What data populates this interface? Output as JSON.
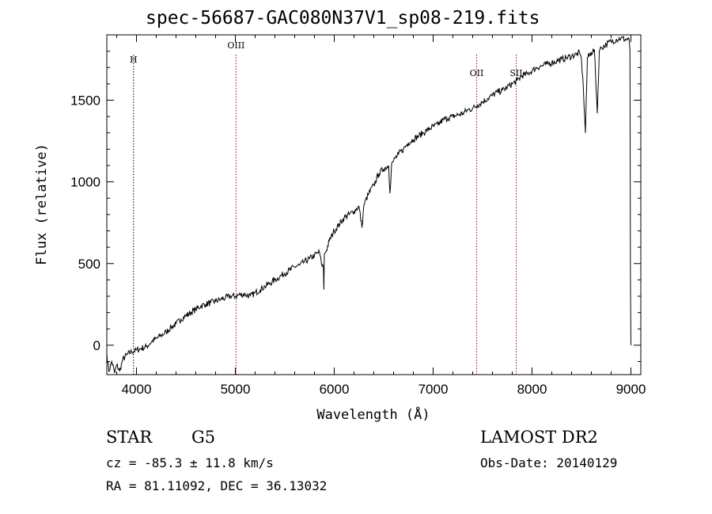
{
  "chart_data": {
    "type": "line",
    "title": "spec-56687-GAC080N37V1_sp08-219.fits",
    "xlabel": "Wavelength (Å)",
    "ylabel": "Flux (relative)",
    "xlim": [
      3700,
      9100
    ],
    "ylim": [
      -180,
      1900
    ],
    "xticks": [
      4000,
      5000,
      6000,
      7000,
      8000,
      9000
    ],
    "xtick_labels": [
      "4000",
      "5000",
      "6000",
      "7000",
      "8000",
      "9000"
    ],
    "yticks": [
      0,
      500,
      1000,
      1500
    ],
    "ytick_labels": [
      "0",
      "500",
      "1000",
      "1500"
    ],
    "grid": false,
    "series": [
      {
        "color": "#000000",
        "x": [
          3700,
          3720,
          3750,
          3780,
          3800,
          3830,
          3860,
          3900,
          3950,
          4000,
          4050,
          4100,
          4150,
          4200,
          4250,
          4300,
          4350,
          4400,
          4450,
          4500,
          4550,
          4600,
          4650,
          4700,
          4750,
          4800,
          4850,
          4900,
          4950,
          5000,
          5050,
          5100,
          5150,
          5200,
          5250,
          5300,
          5350,
          5400,
          5450,
          5500,
          5550,
          5600,
          5650,
          5700,
          5750,
          5800,
          5850,
          5870,
          5890,
          5895,
          5900,
          5920,
          5950,
          6000,
          6050,
          6100,
          6150,
          6200,
          6250,
          6280,
          6300,
          6350,
          6400,
          6450,
          6500,
          6550,
          6563,
          6580,
          6600,
          6650,
          6700,
          6750,
          6800,
          6850,
          6900,
          6950,
          7000,
          7050,
          7100,
          7150,
          7200,
          7250,
          7300,
          7350,
          7400,
          7450,
          7500,
          7550,
          7600,
          7650,
          7700,
          7750,
          7800,
          7850,
          7900,
          7950,
          8000,
          8050,
          8100,
          8150,
          8200,
          8250,
          8300,
          8350,
          8400,
          8450,
          8480,
          8500,
          8520,
          8540,
          8560,
          8600,
          8630,
          8660,
          8680,
          8700,
          8750,
          8800,
          8850,
          8900,
          8950,
          8980,
          8990,
          8995,
          9000
        ],
        "y": [
          -50,
          -160,
          -100,
          -170,
          -120,
          -160,
          -90,
          -60,
          -40,
          -30,
          -20,
          -10,
          20,
          40,
          60,
          80,
          110,
          130,
          160,
          180,
          200,
          220,
          240,
          250,
          260,
          270,
          280,
          290,
          300,
          300,
          310,
          310,
          300,
          320,
          340,
          360,
          380,
          400,
          420,
          440,
          460,
          480,
          490,
          510,
          530,
          550,
          570,
          500,
          480,
          340,
          560,
          580,
          640,
          700,
          740,
          780,
          800,
          820,
          850,
          720,
          860,
          930,
          980,
          1050,
          1080,
          1100,
          930,
          1110,
          1130,
          1170,
          1200,
          1240,
          1260,
          1280,
          1300,
          1320,
          1340,
          1350,
          1380,
          1390,
          1400,
          1410,
          1420,
          1440,
          1450,
          1470,
          1490,
          1510,
          1530,
          1550,
          1560,
          1580,
          1600,
          1620,
          1650,
          1660,
          1680,
          1700,
          1710,
          1720,
          1730,
          1740,
          1750,
          1760,
          1770,
          1780,
          1790,
          1750,
          1560,
          1300,
          1760,
          1790,
          1810,
          1420,
          1800,
          1820,
          1840,
          1860,
          1870,
          1880,
          1870,
          1880,
          1800,
          400,
          0
        ]
      }
    ],
    "line_markers": [
      {
        "label": "H",
        "x": 3970,
        "color": "#000000",
        "style": "dotted"
      },
      {
        "label": "OIII",
        "x": 5007,
        "color": "#8b1a1a",
        "style": "dotted"
      },
      {
        "label": "OII",
        "x": 7440,
        "color": "#8b1a1a",
        "style": "dotted"
      },
      {
        "label": "SII",
        "x": 7840,
        "color": "#8b1a1a",
        "style": "dotted"
      }
    ]
  },
  "info": {
    "class_label": "STAR",
    "subclass": "G5",
    "survey": "LAMOST DR2",
    "redshift_text": "cz = -85.3 ± 11.8 km/s",
    "obs_date_text": "Obs-Date: 20140129",
    "coords_text": "RA =  81.11092, DEC =  36.13032"
  }
}
